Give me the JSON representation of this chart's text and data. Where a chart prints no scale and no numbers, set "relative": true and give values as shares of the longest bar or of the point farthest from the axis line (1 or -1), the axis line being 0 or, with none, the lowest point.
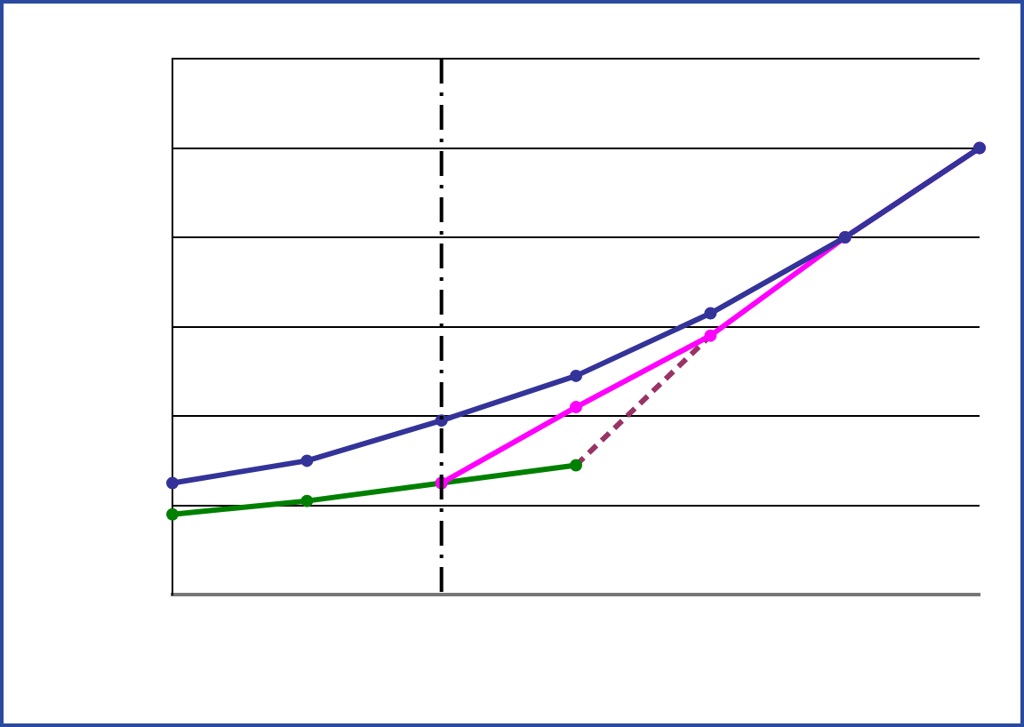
{
  "chart_data": {
    "type": "line",
    "relative": true,
    "categories": [
      null,
      null,
      null,
      null,
      null,
      null,
      null
    ],
    "series": [
      {
        "color": "#333399",
        "values": [
          0.25,
          0.3,
          0.39,
          0.49,
          0.63,
          0.8,
          1.0
        ]
      },
      {
        "color": "#ff00ff",
        "values": [
          null,
          null,
          0.25,
          0.42,
          0.58,
          0.8,
          1.0
        ]
      },
      {
        "color": "#008000",
        "values": [
          0.18,
          0.21,
          0.25,
          0.29,
          null,
          null,
          null
        ]
      },
      {
        "color": "#993366",
        "values": [
          null,
          null,
          null,
          0.29,
          0.58,
          null,
          null
        ],
        "line_style": "dashed",
        "marker": "none"
      }
    ],
    "grid": "y",
    "legend": false,
    "marker": "circle",
    "line_style": "solid"
  }
}
